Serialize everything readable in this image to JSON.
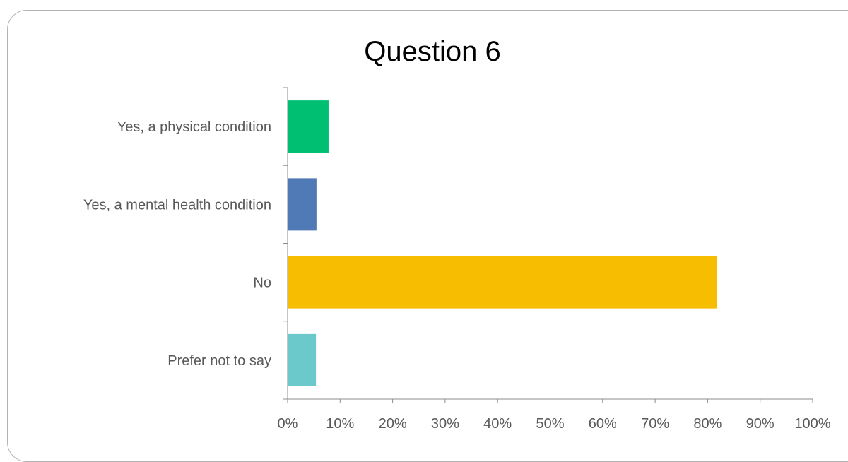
{
  "chart_data": {
    "type": "bar",
    "orientation": "horizontal",
    "title": "Question 6",
    "categories": [
      "Yes, a physical condition",
      "Yes, a mental health condition",
      "No",
      "Prefer not to say"
    ],
    "values": [
      7.8,
      5.5,
      81.8,
      5.4
    ],
    "unit": "%",
    "xlim": [
      0,
      100
    ],
    "x_ticks": [
      "0%",
      "10%",
      "20%",
      "30%",
      "40%",
      "50%",
      "60%",
      "70%",
      "80%",
      "90%",
      "100%"
    ],
    "bar_colors": [
      "#00bf72",
      "#4f7ab5",
      "#f7bd00",
      "#6bc9cc"
    ],
    "grid": false,
    "legend": "none"
  }
}
